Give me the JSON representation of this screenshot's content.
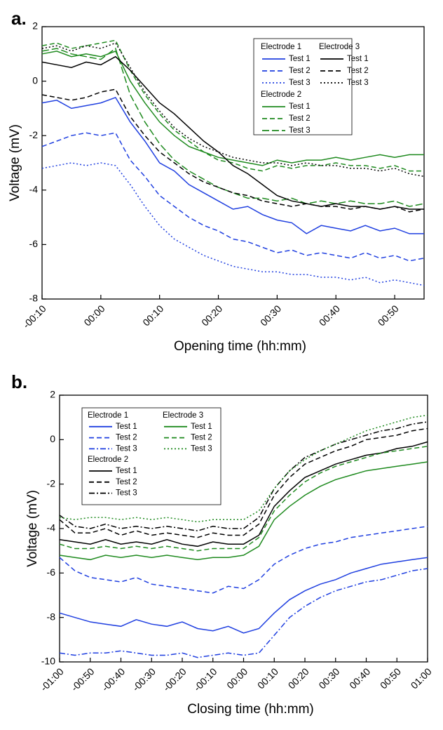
{
  "chart_data": [
    {
      "type": "line",
      "label": "a.",
      "xlabel": "Opening time (hh:mm)",
      "ylabel": "Voltage (mV)",
      "x": [
        -10,
        -7.5,
        -5,
        -2.5,
        0,
        2.5,
        5,
        7.5,
        10,
        12.5,
        15,
        17.5,
        20,
        22.5,
        25,
        27.5,
        30,
        32.5,
        35,
        37.5,
        40,
        42.5,
        45,
        47.5,
        50,
        52.5,
        55
      ],
      "xlim": [
        -10,
        55
      ],
      "xticks": [
        {
          "value": -10,
          "label": "-00:10"
        },
        {
          "value": 0,
          "label": "00:00"
        },
        {
          "value": 10,
          "label": "00:10"
        },
        {
          "value": 20,
          "label": "00:20"
        },
        {
          "value": 30,
          "label": "00:30"
        },
        {
          "value": 40,
          "label": "00:40"
        },
        {
          "value": 50,
          "label": "00:50"
        }
      ],
      "ylim": [
        -8,
        2
      ],
      "yticks": [
        -8,
        -6,
        -4,
        -2,
        0,
        2
      ],
      "groups": [
        {
          "name": "Electrode 1",
          "series": [
            {
              "name": "Test 1",
              "color": "#1f3fe0",
              "dash": "solid",
              "values": [
                -0.8,
                -0.7,
                -1.0,
                -0.9,
                -0.8,
                -0.6,
                -1.5,
                -2.2,
                -3.0,
                -3.3,
                -3.8,
                -4.1,
                -4.4,
                -4.7,
                -4.6,
                -4.9,
                -5.1,
                -5.2,
                -5.6,
                -5.3,
                -5.4,
                -5.5,
                -5.3,
                -5.5,
                -5.4,
                -5.6,
                -5.6
              ]
            },
            {
              "name": "Test 2",
              "color": "#1f3fe0",
              "dash": "dashed",
              "values": [
                -2.4,
                -2.2,
                -2.0,
                -1.9,
                -2.0,
                -1.9,
                -2.9,
                -3.5,
                -4.2,
                -4.6,
                -5.0,
                -5.3,
                -5.5,
                -5.8,
                -5.9,
                -6.1,
                -6.3,
                -6.2,
                -6.4,
                -6.3,
                -6.4,
                -6.5,
                -6.3,
                -6.5,
                -6.4,
                -6.6,
                -6.5
              ]
            },
            {
              "name": "Test 3",
              "color": "#1f3fe0",
              "dash": "dotted",
              "values": [
                -3.2,
                -3.1,
                -3.0,
                -3.1,
                -3.0,
                -3.1,
                -3.8,
                -4.6,
                -5.3,
                -5.8,
                -6.1,
                -6.4,
                -6.6,
                -6.8,
                -6.9,
                -7.0,
                -7.0,
                -7.1,
                -7.1,
                -7.2,
                -7.2,
                -7.3,
                -7.2,
                -7.4,
                -7.3,
                -7.4,
                -7.5
              ]
            }
          ]
        },
        {
          "name": "Electrode 2",
          "series": [
            {
              "name": "Test 1",
              "color": "#1e8a1e",
              "dash": "solid",
              "values": [
                1.0,
                1.1,
                0.9,
                1.0,
                0.9,
                1.1,
                0.0,
                -0.8,
                -1.5,
                -2.0,
                -2.4,
                -2.6,
                -2.8,
                -2.9,
                -3.0,
                -3.1,
                -2.9,
                -3.0,
                -2.9,
                -2.9,
                -2.8,
                -2.9,
                -2.8,
                -2.7,
                -2.8,
                -2.7,
                -2.7
              ]
            },
            {
              "name": "Test 2",
              "color": "#1e8a1e",
              "dash": "dashed",
              "values": [
                1.3,
                1.4,
                1.2,
                1.3,
                1.4,
                1.5,
                0.4,
                -0.5,
                -1.2,
                -1.8,
                -2.2,
                -2.6,
                -2.9,
                -3.0,
                -3.2,
                -3.3,
                -3.1,
                -3.2,
                -3.1,
                -3.1,
                -3.0,
                -3.1,
                -3.1,
                -3.2,
                -3.1,
                -3.3,
                -3.3
              ]
            },
            {
              "name": "Test 3",
              "color": "#1e8a1e",
              "dash": "long-dash",
              "values": [
                1.1,
                1.2,
                1.0,
                0.9,
                0.8,
                1.2,
                -0.5,
                -1.5,
                -2.3,
                -2.9,
                -3.3,
                -3.6,
                -3.9,
                -4.1,
                -4.3,
                -4.3,
                -4.4,
                -4.3,
                -4.5,
                -4.4,
                -4.5,
                -4.4,
                -4.5,
                -4.5,
                -4.4,
                -4.6,
                -4.5
              ]
            }
          ]
        },
        {
          "name": "Electrode 3",
          "series": [
            {
              "name": "Test 1",
              "color": "#000000",
              "dash": "solid",
              "values": [
                0.7,
                0.6,
                0.5,
                0.7,
                0.6,
                0.9,
                0.4,
                -0.2,
                -0.8,
                -1.2,
                -1.7,
                -2.2,
                -2.6,
                -3.1,
                -3.4,
                -3.8,
                -4.2,
                -4.4,
                -4.5,
                -4.6,
                -4.5,
                -4.6,
                -4.6,
                -4.7,
                -4.6,
                -4.7,
                -4.7
              ]
            },
            {
              "name": "Test 2",
              "color": "#000000",
              "dash": "dashed",
              "values": [
                -0.5,
                -0.6,
                -0.7,
                -0.6,
                -0.4,
                -0.3,
                -1.3,
                -2.0,
                -2.6,
                -3.0,
                -3.4,
                -3.7,
                -3.9,
                -4.1,
                -4.2,
                -4.4,
                -4.5,
                -4.6,
                -4.5,
                -4.6,
                -4.6,
                -4.7,
                -4.6,
                -4.7,
                -4.6,
                -4.8,
                -4.7
              ]
            },
            {
              "name": "Test 3",
              "color": "#000000",
              "dash": "dotted",
              "values": [
                1.2,
                1.3,
                1.1,
                1.3,
                1.2,
                1.4,
                0.5,
                -0.4,
                -1.1,
                -1.7,
                -2.1,
                -2.4,
                -2.6,
                -2.8,
                -2.9,
                -3.0,
                -3.0,
                -3.1,
                -3.0,
                -3.1,
                -3.1,
                -3.2,
                -3.2,
                -3.3,
                -3.2,
                -3.4,
                -3.5
              ]
            }
          ]
        }
      ]
    },
    {
      "type": "line",
      "label": "b.",
      "xlabel": "Closing time (hh:mm)",
      "ylabel": "Voltage (mV)",
      "x": [
        -60,
        -55,
        -50,
        -45,
        -40,
        -35,
        -30,
        -25,
        -20,
        -15,
        -10,
        -5,
        0,
        5,
        10,
        15,
        20,
        25,
        30,
        35,
        40,
        45,
        50,
        55,
        60
      ],
      "xlim": [
        -60,
        60
      ],
      "xticks": [
        {
          "value": -60,
          "label": "-01:00"
        },
        {
          "value": -50,
          "label": "-00:50"
        },
        {
          "value": -40,
          "label": "-00:40"
        },
        {
          "value": -30,
          "label": "-00:30"
        },
        {
          "value": -20,
          "label": "-00:20"
        },
        {
          "value": -10,
          "label": "-00:10"
        },
        {
          "value": 0,
          "label": "00:00"
        },
        {
          "value": 10,
          "label": "00:10"
        },
        {
          "value": 20,
          "label": "00:20"
        },
        {
          "value": 30,
          "label": "00:30"
        },
        {
          "value": 40,
          "label": "00:40"
        },
        {
          "value": 50,
          "label": "00:50"
        },
        {
          "value": 60,
          "label": "01:00"
        }
      ],
      "ylim": [
        -10,
        2
      ],
      "yticks": [
        -10,
        -8,
        -6,
        -4,
        -2,
        0,
        2
      ],
      "groups": [
        {
          "name": "Electrode 1",
          "series": [
            {
              "name": "Test 1",
              "color": "#1f3fe0",
              "dash": "solid",
              "values": [
                -7.8,
                -8.0,
                -8.2,
                -8.3,
                -8.4,
                -8.1,
                -8.3,
                -8.4,
                -8.2,
                -8.5,
                -8.6,
                -8.4,
                -8.7,
                -8.5,
                -7.8,
                -7.2,
                -6.8,
                -6.5,
                -6.3,
                -6.0,
                -5.8,
                -5.6,
                -5.5,
                -5.4,
                -5.3
              ]
            },
            {
              "name": "Test 2",
              "color": "#1f3fe0",
              "dash": "dashed",
              "values": [
                -5.3,
                -5.9,
                -6.2,
                -6.3,
                -6.4,
                -6.2,
                -6.5,
                -6.6,
                -6.7,
                -6.8,
                -6.9,
                -6.6,
                -6.7,
                -6.3,
                -5.6,
                -5.2,
                -4.9,
                -4.7,
                -4.6,
                -4.4,
                -4.3,
                -4.2,
                -4.1,
                -4.0,
                -3.9
              ]
            },
            {
              "name": "Test 3",
              "color": "#1f3fe0",
              "dash": "dash-dot",
              "values": [
                -9.6,
                -9.7,
                -9.6,
                -9.6,
                -9.5,
                -9.6,
                -9.7,
                -9.7,
                -9.6,
                -9.8,
                -9.7,
                -9.6,
                -9.7,
                -9.6,
                -8.8,
                -8.0,
                -7.5,
                -7.1,
                -6.8,
                -6.6,
                -6.4,
                -6.3,
                -6.1,
                -5.9,
                -5.8
              ]
            }
          ]
        },
        {
          "name": "Electrode 2",
          "series": [
            {
              "name": "Test 1",
              "color": "#000000",
              "dash": "solid",
              "values": [
                -4.5,
                -4.6,
                -4.7,
                -4.5,
                -4.7,
                -4.6,
                -4.7,
                -4.5,
                -4.7,
                -4.8,
                -4.6,
                -4.7,
                -4.7,
                -4.3,
                -3.0,
                -2.3,
                -1.7,
                -1.4,
                -1.1,
                -0.9,
                -0.7,
                -0.6,
                -0.4,
                -0.3,
                -0.1
              ]
            },
            {
              "name": "Test 2",
              "color": "#000000",
              "dash": "dashed",
              "values": [
                -3.6,
                -4.2,
                -4.2,
                -4.0,
                -4.3,
                -4.1,
                -4.3,
                -4.2,
                -4.3,
                -4.4,
                -4.2,
                -4.3,
                -4.3,
                -3.8,
                -2.5,
                -1.7,
                -1.1,
                -0.8,
                -0.5,
                -0.3,
                0.0,
                0.1,
                0.2,
                0.4,
                0.5
              ]
            },
            {
              "name": "Test 3",
              "color": "#000000",
              "dash": "dash-dot",
              "values": [
                -3.4,
                -3.9,
                -4.0,
                -3.8,
                -4.0,
                -3.9,
                -4.0,
                -3.9,
                -4.0,
                -4.1,
                -3.9,
                -4.0,
                -4.0,
                -3.5,
                -2.2,
                -1.4,
                -0.8,
                -0.5,
                -0.2,
                0.0,
                0.2,
                0.4,
                0.5,
                0.7,
                0.8
              ]
            }
          ]
        },
        {
          "name": "Electrode 3",
          "series": [
            {
              "name": "Test 1",
              "color": "#1e8a1e",
              "dash": "solid",
              "values": [
                -5.2,
                -5.3,
                -5.4,
                -5.2,
                -5.3,
                -5.2,
                -5.3,
                -5.2,
                -5.3,
                -5.4,
                -5.3,
                -5.3,
                -5.2,
                -4.8,
                -3.6,
                -3.0,
                -2.5,
                -2.1,
                -1.8,
                -1.6,
                -1.4,
                -1.3,
                -1.2,
                -1.1,
                -1.0
              ]
            },
            {
              "name": "Test 2",
              "color": "#1e8a1e",
              "dash": "dashed",
              "values": [
                -4.7,
                -4.9,
                -4.9,
                -4.8,
                -4.9,
                -4.8,
                -4.9,
                -4.8,
                -4.9,
                -5.0,
                -4.9,
                -4.9,
                -4.9,
                -4.4,
                -3.2,
                -2.5,
                -1.9,
                -1.5,
                -1.2,
                -1.0,
                -0.8,
                -0.6,
                -0.5,
                -0.4,
                -0.3
              ]
            },
            {
              "name": "Test 3",
              "color": "#1e8a1e",
              "dash": "dotted",
              "values": [
                -3.5,
                -3.6,
                -3.5,
                -3.5,
                -3.6,
                -3.5,
                -3.6,
                -3.5,
                -3.6,
                -3.7,
                -3.6,
                -3.6,
                -3.6,
                -3.2,
                -2.2,
                -1.4,
                -0.9,
                -0.5,
                -0.2,
                0.1,
                0.4,
                0.6,
                0.8,
                1.0,
                1.1
              ]
            }
          ]
        }
      ]
    }
  ]
}
